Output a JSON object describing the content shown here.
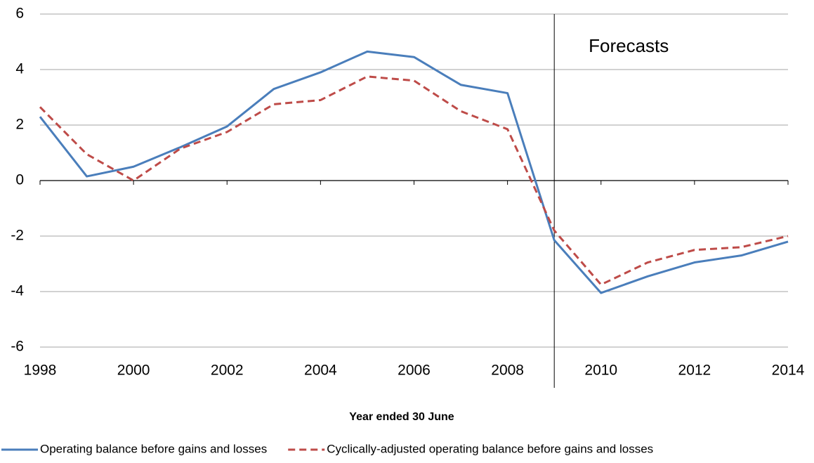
{
  "chart_data": {
    "type": "line",
    "x_label": "Year ended 30 June",
    "x": [
      1998,
      1999,
      2000,
      2001,
      2002,
      2003,
      2004,
      2005,
      2006,
      2007,
      2008,
      2009,
      2010,
      2011,
      2012,
      2013,
      2014
    ],
    "series": [
      {
        "name": "Operating balance before gains and losses",
        "color": "#4a7ebb",
        "dashed": false,
        "values": [
          2.3,
          0.15,
          0.5,
          1.2,
          1.95,
          3.3,
          3.9,
          4.65,
          4.45,
          3.45,
          3.15,
          -2.15,
          -4.05,
          -3.45,
          -2.95,
          -2.7,
          -2.2
        ]
      },
      {
        "name": "Cyclically-adjusted operating balance before gains and losses",
        "color": "#be4b48",
        "dashed": true,
        "values": [
          2.65,
          0.95,
          0.0,
          1.15,
          1.75,
          2.75,
          2.9,
          3.75,
          3.6,
          2.5,
          1.85,
          -1.8,
          -3.75,
          -2.95,
          -2.5,
          -2.4,
          -2.0
        ]
      }
    ],
    "annotation": {
      "text": "Forecasts",
      "x": 2009
    },
    "xlim": [
      1998,
      2014
    ],
    "xticks": [
      1998,
      2000,
      2002,
      2004,
      2006,
      2008,
      2010,
      2012,
      2014
    ],
    "ylim": [
      -6,
      6
    ],
    "yticks": [
      -6,
      -4,
      -2,
      0,
      2,
      4,
      6
    ],
    "grid": true,
    "legend": "bottom"
  }
}
